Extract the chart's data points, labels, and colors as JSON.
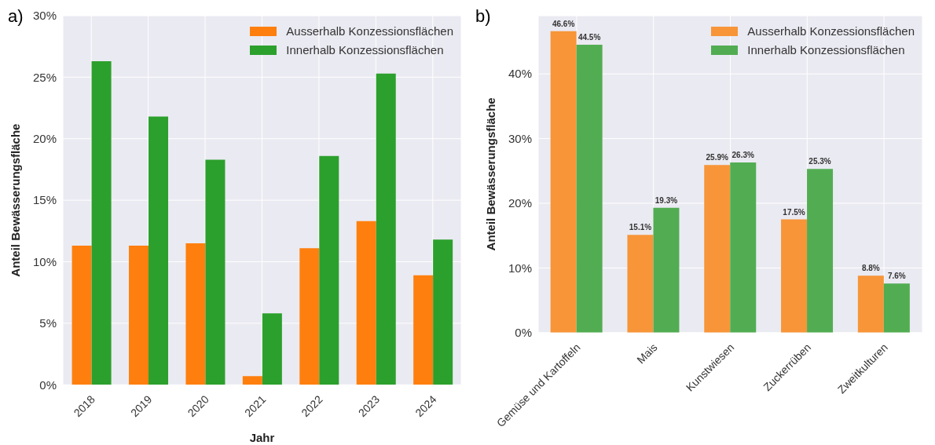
{
  "chart_data": [
    {
      "type": "bar",
      "title": "a)",
      "xlabel": "Jahr",
      "ylabel": "Anteil Bewässerungsfläche",
      "categories": [
        "2018",
        "2019",
        "2020",
        "2021",
        "2022",
        "2023",
        "2024"
      ],
      "series": [
        {
          "name": "Ausserhalb Konzessionsflächen",
          "color": "#ff7f0e",
          "values": [
            11.3,
            11.3,
            11.5,
            0.7,
            11.1,
            13.3,
            8.9
          ]
        },
        {
          "name": "Innerhalb Konzessionsflächen",
          "color": "#2ca02c",
          "values": [
            26.3,
            21.8,
            18.3,
            5.8,
            18.6,
            25.3,
            11.8
          ]
        }
      ],
      "ylim": [
        0,
        30
      ],
      "yticks": [
        {
          "value": 0,
          "label": "0%"
        },
        {
          "value": 5,
          "label": "5%"
        },
        {
          "value": 10,
          "label": "10%"
        },
        {
          "value": 15,
          "label": "15%"
        },
        {
          "value": 20,
          "label": "20%"
        },
        {
          "value": 25,
          "label": "25%"
        },
        {
          "value": 30,
          "label": "30%"
        }
      ],
      "grid": true,
      "legend": "top right"
    },
    {
      "type": "bar",
      "title": "b)",
      "ylabel": "Anteil Bewässerungsfläche",
      "categories": [
        "Gemüse und Kartoffeln",
        "Mais",
        "Kunstwiesen",
        "Zuckerrüben",
        "Zweitkulturen"
      ],
      "series": [
        {
          "name": "Ausserhalb Konzessionsflächen",
          "color": "#f79538",
          "values": [
            46.6,
            15.1,
            25.9,
            17.5,
            8.8
          ],
          "value_labels": [
            "46.6%",
            "15.1%",
            "25.9%",
            "17.5%",
            "8.8%"
          ]
        },
        {
          "name": "Innerhalb Konzessionsflächen",
          "color": "#52ad52",
          "values": [
            44.5,
            19.3,
            26.3,
            25.3,
            7.6
          ],
          "value_labels": [
            "44.5%",
            "19.3%",
            "26.3%",
            "25.3%",
            "7.6%"
          ]
        }
      ],
      "ylim": [
        0,
        49
      ],
      "yticks": [
        {
          "value": 0,
          "label": "0%"
        },
        {
          "value": 10,
          "label": "10%"
        },
        {
          "value": 20,
          "label": "20%"
        },
        {
          "value": 30,
          "label": "30%"
        },
        {
          "value": 40,
          "label": "40%"
        }
      ],
      "grid": true,
      "legend": "top right"
    }
  ]
}
